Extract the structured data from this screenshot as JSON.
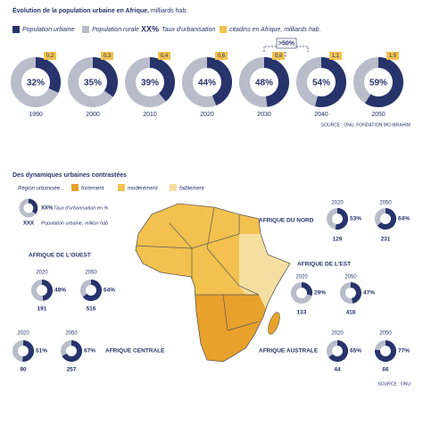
{
  "top": {
    "title": "Évolution de la population urbaine en Afrique,",
    "title_unit": "milliards hab.",
    "legend": {
      "urban": "Population urbaine",
      "rural": "Population rurale",
      "rate_key": "XX%",
      "rate": "Taux d'urbanisation",
      "citadins": "citadins en Afrique, milliards hab."
    },
    "points": [
      {
        "year": "1990",
        "rate": 32,
        "rate_label": "32%",
        "urban": 0.2,
        "urban_label": "0,2"
      },
      {
        "year": "2000",
        "rate": 35,
        "rate_label": "35%",
        "urban": 0.3,
        "urban_label": "0,3"
      },
      {
        "year": "2010",
        "rate": 39,
        "rate_label": "39%",
        "urban": 0.4,
        "urban_label": "0,4"
      },
      {
        "year": "2020",
        "rate": 44,
        "rate_label": "44%",
        "urban": 0.6,
        "urban_label": "0,6"
      },
      {
        "year": "2030",
        "rate": 48,
        "rate_label": "48%",
        "urban": 0.8,
        "urban_label": "0,8"
      },
      {
        "year": "2040",
        "rate": 54,
        "rate_label": "54%",
        "urban": 1.1,
        "urban_label": "1,1"
      },
      {
        "year": "2050",
        "rate": 59,
        "rate_label": "59%",
        "urban": 1.5,
        "urban_label": "1,5"
      }
    ],
    "annotation": ">50%",
    "source": "SOURCE : ONU, FONDATION MO IBRAHIM"
  },
  "bottom": {
    "title": "Des dynamiques urbaines contrastées",
    "legend": {
      "label": "Région urbanisée...",
      "high": "fortement",
      "mid": "modérément",
      "low": "faiblement"
    },
    "key": {
      "rate_key": "XX%",
      "rate": "Taux d'urbanisation en %",
      "pop_key": "XXX",
      "pop": "Population urbaine, million hab"
    },
    "regions": [
      {
        "name": "AFRIQUE DU NORD",
        "points": [
          {
            "year": "2020",
            "rate": 53,
            "rate_label": "53%",
            "pop": 129
          },
          {
            "year": "2050",
            "rate": 64,
            "rate_label": "64%",
            "pop": 231
          }
        ]
      },
      {
        "name": "AFRIQUE DE L'OUEST",
        "points": [
          {
            "year": "2020",
            "rate": 48,
            "rate_label": "48%",
            "pop": 191
          },
          {
            "year": "2050",
            "rate": 64,
            "rate_label": "64%",
            "pop": 516
          }
        ]
      },
      {
        "name": "AFRIQUE DE L'EST",
        "points": [
          {
            "year": "2020",
            "rate": 29,
            "rate_label": "29%",
            "pop": 133
          },
          {
            "year": "2050",
            "rate": 47,
            "rate_label": "47%",
            "pop": 418
          }
        ]
      },
      {
        "name": "AFRIQUE CENTRALE",
        "points": [
          {
            "year": "2020",
            "rate": 51,
            "rate_label": "51%",
            "pop": 90
          },
          {
            "year": "2050",
            "rate": 67,
            "rate_label": "67%",
            "pop": 257
          }
        ]
      },
      {
        "name": "AFRIQUE AUSTRALE",
        "points": [
          {
            "year": "2020",
            "rate": 65,
            "rate_label": "65%",
            "pop": 44
          },
          {
            "year": "2050",
            "rate": 77,
            "rate_label": "77%",
            "pop": 66
          }
        ]
      }
    ],
    "source": "SOURCE : ONU"
  }
}
